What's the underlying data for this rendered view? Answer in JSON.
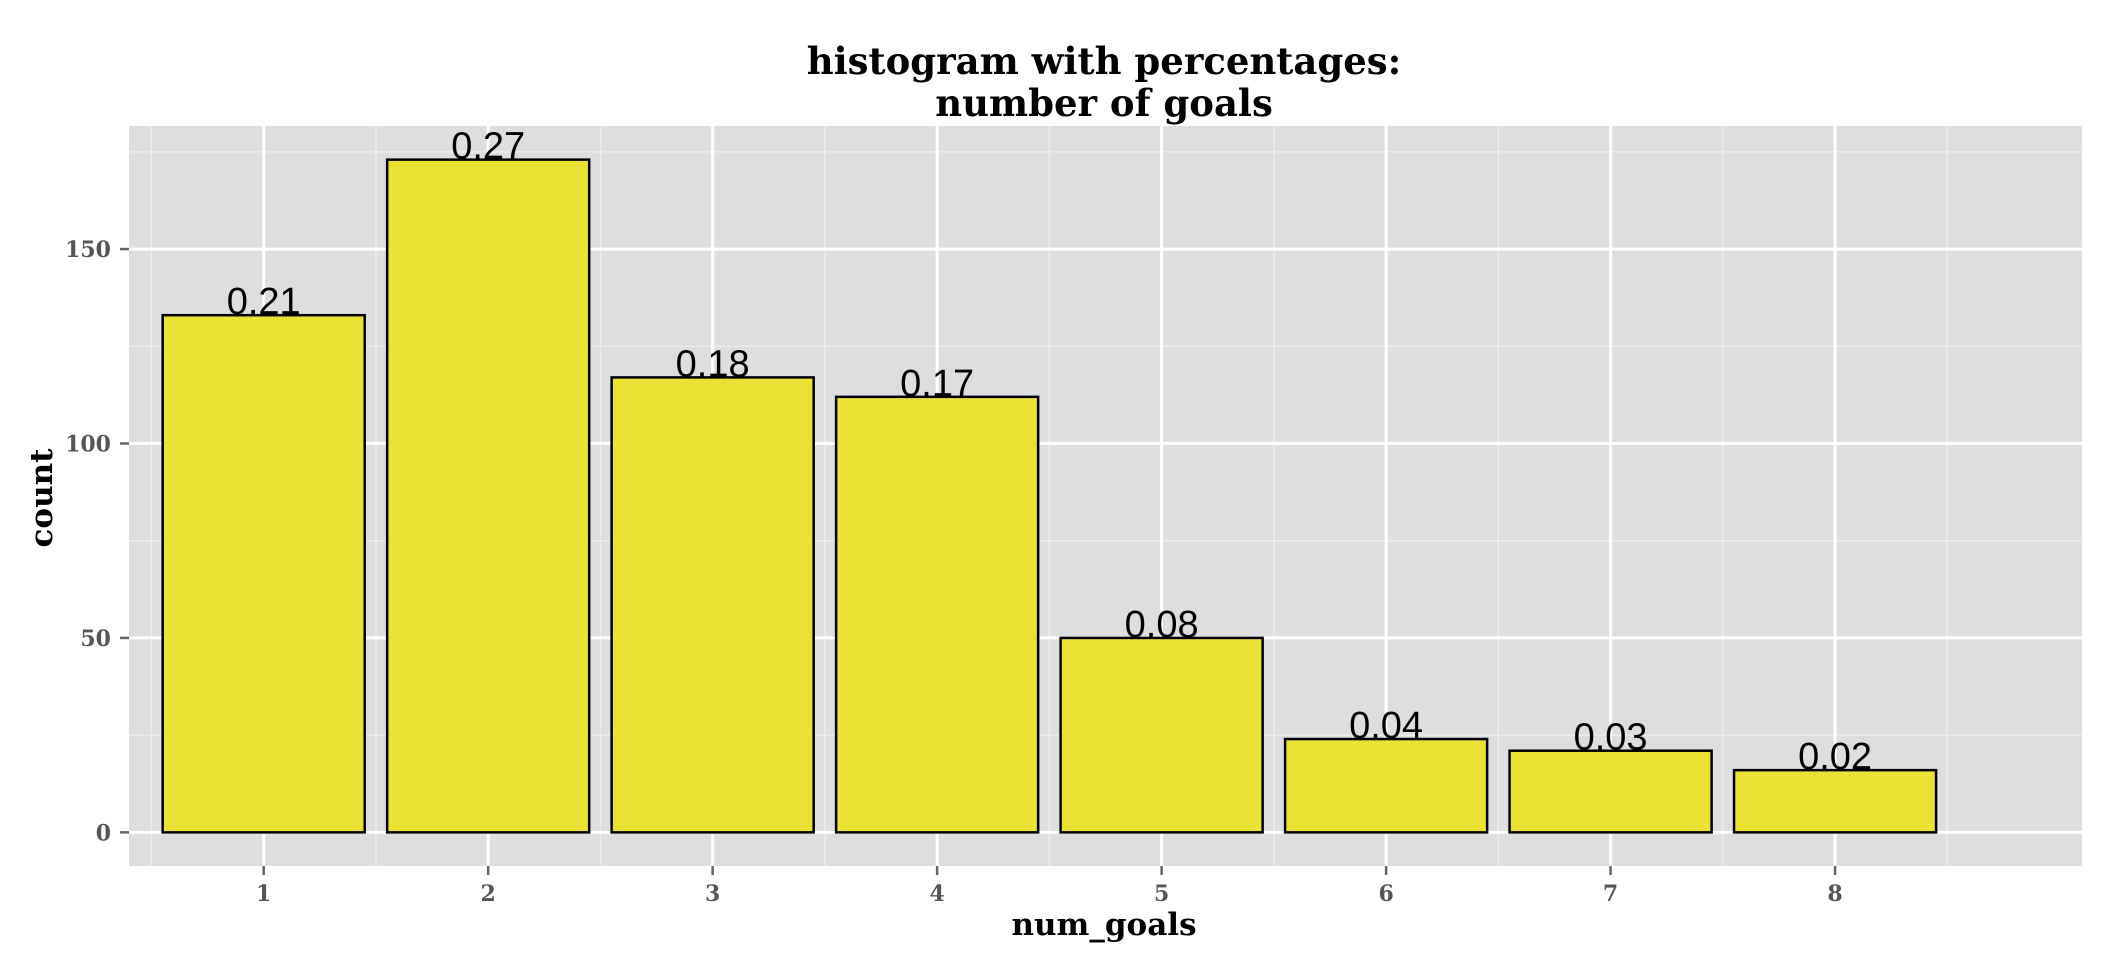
{
  "chart_data": {
    "type": "bar",
    "title_lines": [
      "histogram with percentages:",
      "number of goals"
    ],
    "xlabel": "num_goals",
    "ylabel": "count",
    "categories": [
      "1",
      "2",
      "3",
      "4",
      "5",
      "6",
      "7",
      "8"
    ],
    "values": [
      133,
      173,
      117,
      112,
      50,
      24,
      21,
      16
    ],
    "labels": [
      "0.21",
      "0.27",
      "0.18",
      "0.17",
      "0.08",
      "0.04",
      "0.03",
      "0.02"
    ],
    "y_ticks": [
      0,
      50,
      100,
      150
    ],
    "y_tick_labels": [
      "0",
      "50",
      "100",
      "150"
    ],
    "ylim": [
      -8.65,
      181.65
    ],
    "xlim": [
      0.4,
      9.1
    ],
    "grid": true,
    "colors": {
      "panel": "#dedede",
      "grid_major": "#ffffff",
      "grid_minor": "#ececec",
      "bar_fill": "#ece236",
      "bar_stroke": "#000000",
      "tick_mark": "#666666"
    }
  }
}
